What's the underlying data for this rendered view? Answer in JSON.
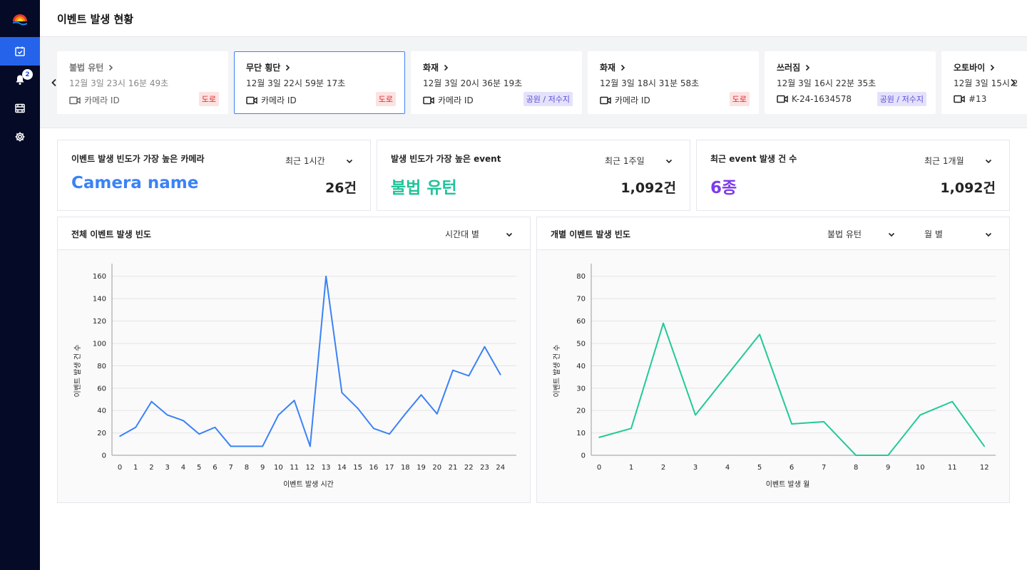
{
  "page": {
    "title": "이벤트 발생 현황"
  },
  "sidebar": {
    "notification_count": "2"
  },
  "events": [
    {
      "type": "불법 유턴",
      "time": "12월 3일 23시 16분 49초",
      "camera": "카메라 ID",
      "tag": "도로",
      "tag_kind": "road",
      "dim": true,
      "selected": false
    },
    {
      "type": "무단 횡단",
      "time": "12월 3일 22시 59분 17초",
      "camera": "카메라 ID",
      "tag": "도로",
      "tag_kind": "road",
      "dim": false,
      "selected": true
    },
    {
      "type": "화재",
      "time": "12월 3일 20시 36분 19초",
      "camera": "카메라 ID",
      "tag": "공원 / 저수지",
      "tag_kind": "park",
      "dim": false,
      "selected": false
    },
    {
      "type": "화재",
      "time": "12월 3일 18시 31분 58초",
      "camera": "카메라 ID",
      "tag": "도로",
      "tag_kind": "road",
      "dim": false,
      "selected": false
    },
    {
      "type": "쓰러짐",
      "time": "12월 3일 16시 22분 35초",
      "camera": "K-24-1634578",
      "tag": "공원 / 저수지",
      "tag_kind": "park",
      "dim": false,
      "selected": false
    },
    {
      "type": "오토바이",
      "time": "12월 3일 15시 2",
      "camera": "#13",
      "tag": "",
      "tag_kind": "",
      "dim": false,
      "selected": false
    }
  ],
  "stats": [
    {
      "title": "이벤트 발생 빈도가 가장 높은 카메라",
      "period": "최근 1시간",
      "value": "Camera name",
      "value_color": "#3b82f6",
      "count": "26건"
    },
    {
      "title": "발생 빈도가 가장 높은 event",
      "period": "최근 1주일",
      "value": "불법 유턴",
      "value_color": "#22c39a",
      "count": "1,092건"
    },
    {
      "title": "최근 event 발생 건 수",
      "period": "최근 1개월",
      "value": "6종",
      "value_color": "#7c3aed",
      "count": "1,092건"
    }
  ],
  "charts": {
    "total": {
      "title": "전체 이벤트 발생 빈도",
      "dropdown": "시간대 별"
    },
    "individual": {
      "title": "개별 이벤트 발생 빈도",
      "dropdown_event": "불법 유턴",
      "dropdown_period": "월 별"
    }
  },
  "chart_data": [
    {
      "type": "line",
      "color": "#3b82f6",
      "x": [
        0,
        1,
        2,
        3,
        4,
        5,
        6,
        7,
        8,
        9,
        10,
        11,
        12,
        13,
        14,
        15,
        16,
        17,
        18,
        19,
        20,
        21,
        22,
        23,
        24
      ],
      "xticks": [
        0,
        1,
        2,
        3,
        4,
        5,
        6,
        7,
        8,
        9,
        10,
        11,
        12,
        13,
        14,
        15,
        16,
        17,
        18,
        19,
        20,
        21,
        22,
        23,
        24
      ],
      "x_points": [
        0,
        1,
        2,
        3,
        4,
        5,
        6,
        7,
        8,
        9,
        10,
        11,
        12,
        13,
        14,
        15,
        16,
        17,
        18,
        19,
        20,
        21,
        22,
        23,
        24
      ],
      "values": [
        17,
        25,
        48,
        36,
        31,
        19,
        25,
        8,
        8,
        8,
        36,
        49,
        8,
        160,
        56,
        42,
        24,
        19,
        37,
        54,
        37,
        76,
        71,
        97,
        72
      ],
      "xlabel": "이벤트 발생 시간",
      "ylabel": "이벤트 발생 건 수",
      "yticks": [
        0,
        20,
        40,
        60,
        80,
        100,
        120,
        140,
        160
      ],
      "ylim": [
        0,
        170
      ],
      "xlim": [
        0,
        25
      ],
      "grid": true
    },
    {
      "type": "line",
      "color": "#22c997",
      "xticks": [
        0,
        1,
        2,
        3,
        4,
        5,
        6,
        7,
        8,
        9,
        10,
        11,
        12
      ],
      "x_points": [
        0,
        1,
        2,
        3,
        4,
        5,
        6,
        7,
        8,
        9,
        10,
        11,
        12
      ],
      "values": [
        8,
        12,
        59,
        18,
        36,
        54,
        14,
        15,
        0,
        0,
        18,
        24,
        4
      ],
      "xlabel": "이벤트 발생 월",
      "ylabel": "이벤트 발생 건 수",
      "yticks": [
        0,
        10,
        20,
        30,
        40,
        50,
        60,
        70,
        80
      ],
      "ylim": [
        0,
        85
      ],
      "xlim": [
        0,
        12.35
      ],
      "grid": true
    }
  ]
}
